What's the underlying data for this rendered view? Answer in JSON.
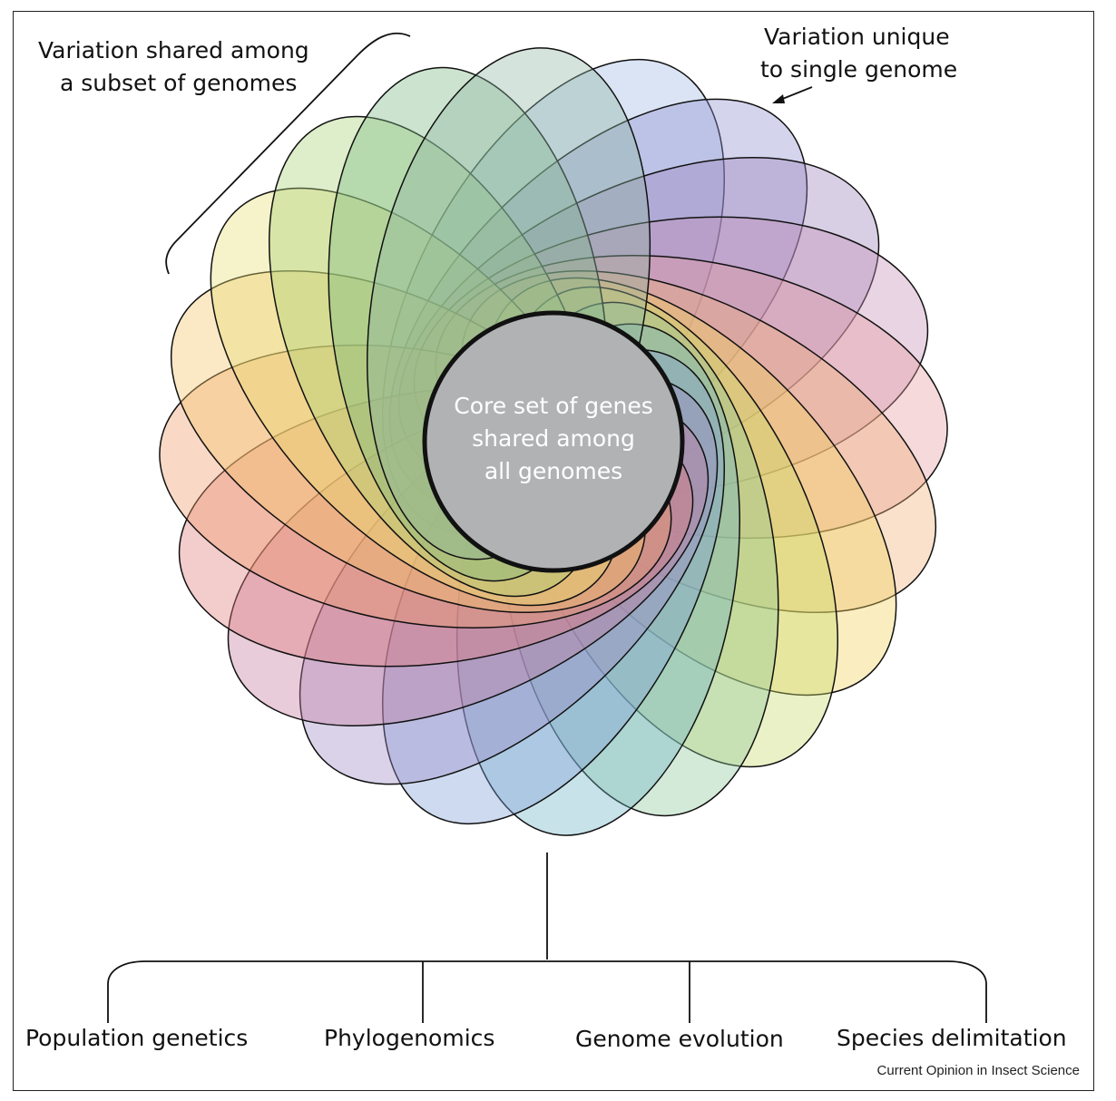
{
  "labels": {
    "shared_subset": "Variation shared among\na subset of genomes",
    "shared_subset_line1": "Variation shared among",
    "shared_subset_line2": "a subset of genomes",
    "unique_line1": "Variation unique",
    "unique_line2": "to single genome",
    "core_line1": "Core set of genes",
    "core_line2": "shared among",
    "core_line3": "all genomes"
  },
  "applications": [
    "Population genetics",
    "Phylogenomics",
    "Genome evolution",
    "Species delimitation"
  ],
  "caption": "Current Opinion in Insect Science",
  "genome_colors": [
    "#9fb9e6",
    "#8e8fd0",
    "#9c80bb",
    "#c38fb6",
    "#e49aa0",
    "#f0b07a",
    "#f2d35c",
    "#c8d96a",
    "#8fc79a",
    "#6fb2c4",
    "#7f9fd8",
    "#9a88c4",
    "#c27a9e",
    "#e07a7a",
    "#f09c6a",
    "#f5c46a",
    "#e8dd70",
    "#a9cf74",
    "#79b882",
    "#8fb6a0"
  ],
  "core_color": "#b1b2b4"
}
